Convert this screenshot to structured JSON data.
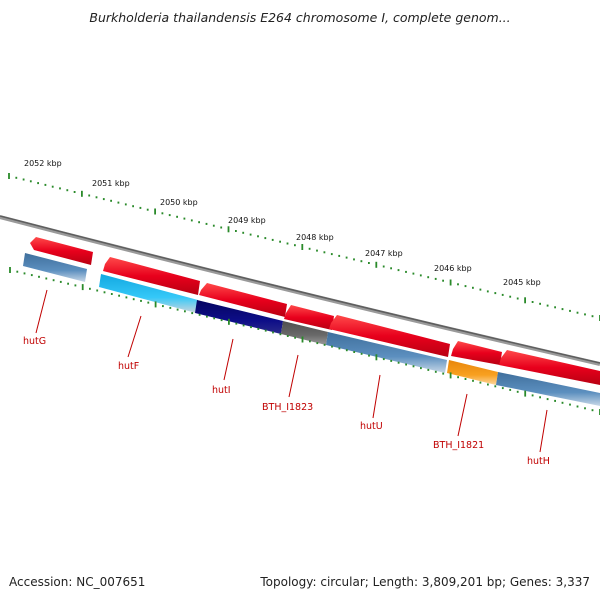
{
  "title": "Burkholderia thailandensis E264 chromosome I, complete genom...",
  "accession_text": "Accession: NC_007651",
  "topology_text": "Topology: circular; Length: 3,809,201 bp; Genes: 3,337",
  "scale_labels": [
    "2052 kbp",
    "2051 kbp",
    "2050 kbp",
    "2049 kbp",
    "2048 kbp",
    "2047 kbp",
    "2046 kbp",
    "2045 kbp"
  ],
  "genes": [
    {
      "label": "hutG"
    },
    {
      "label": "hutF"
    },
    {
      "label": "hutI"
    },
    {
      "label": "BTH_I1823"
    },
    {
      "label": "hutU"
    },
    {
      "label": "BTH_I1821"
    },
    {
      "label": "hutH"
    }
  ],
  "colors": {
    "backbone": "#7a7a7a",
    "cds_forward": "#e8001c",
    "gene_steelblue": "#4a7fb0",
    "gene_cyan": "#1ebcef",
    "gene_navy": "#0a0a7a",
    "gene_gray": "#606060",
    "gene_orange": "#f29410",
    "tick_green": "#2a8a2a",
    "label_red": "#c00000"
  }
}
